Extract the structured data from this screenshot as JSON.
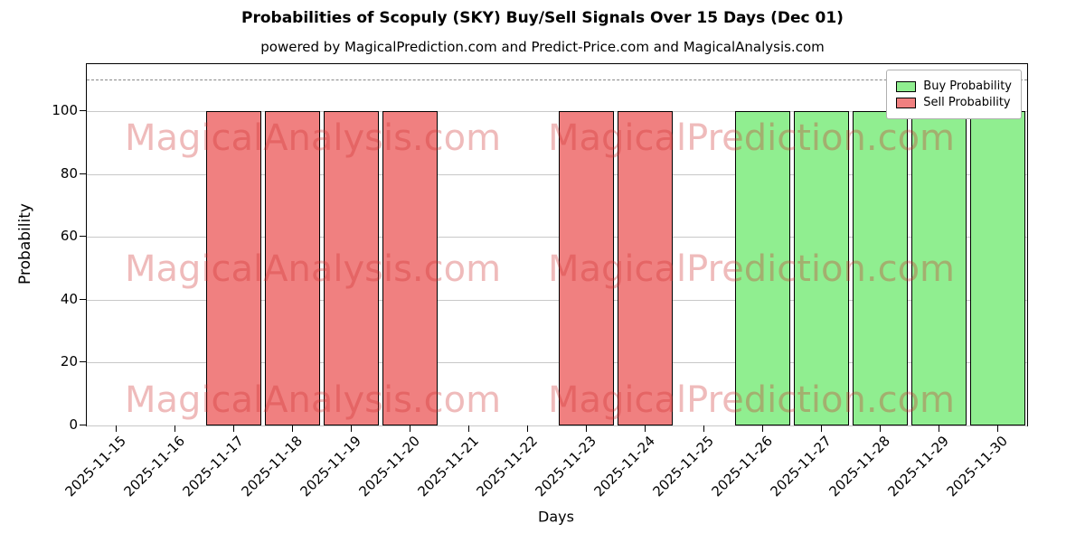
{
  "title": "Probabilities of Scopuly (SKY) Buy/Sell Signals Over 15 Days (Dec 01)",
  "subtitle": "powered by MagicalPrediction.com and Predict-Price.com and MagicalAnalysis.com",
  "legend": {
    "buy_label": "Buy Probability",
    "sell_label": "Sell Probability"
  },
  "watermarks": {
    "left": "MagicalAnalysis.com",
    "right": "MagicalPrediction.com"
  },
  "colors": {
    "buy": "#90ee90",
    "sell": "#f08080",
    "bar_edge": "#000000",
    "grid": "#c8c8c8",
    "threshold": "#888888",
    "watermark": "rgba(205, 45, 45, 0.32)"
  },
  "chart_data": {
    "type": "bar",
    "title": "Probabilities of Scopuly (SKY) Buy/Sell Signals Over 15 Days (Dec 01)",
    "xlabel": "Days",
    "ylabel": "Probability",
    "ylim": [
      0,
      115
    ],
    "yticks": [
      0,
      20,
      40,
      60,
      80,
      100
    ],
    "threshold_line_y": 110,
    "grid": true,
    "legend_position": "upper right",
    "categories": [
      "2025-11-15",
      "2025-11-16",
      "2025-11-17",
      "2025-11-18",
      "2025-11-19",
      "2025-11-20",
      "2025-11-21",
      "2025-11-22",
      "2025-11-23",
      "2025-11-24",
      "2025-11-25",
      "2025-11-26",
      "2025-11-27",
      "2025-11-28",
      "2025-11-29",
      "2025-11-30"
    ],
    "series": [
      {
        "name": "Buy Probability",
        "color": "#90ee90",
        "values": [
          0,
          0,
          0,
          0,
          0,
          0,
          0,
          0,
          0,
          0,
          0,
          100,
          100,
          100,
          100,
          100
        ]
      },
      {
        "name": "Sell Probability",
        "color": "#f08080",
        "values": [
          0,
          0,
          100,
          100,
          100,
          100,
          0,
          0,
          100,
          100,
          0,
          0,
          0,
          0,
          0,
          0
        ]
      }
    ]
  }
}
